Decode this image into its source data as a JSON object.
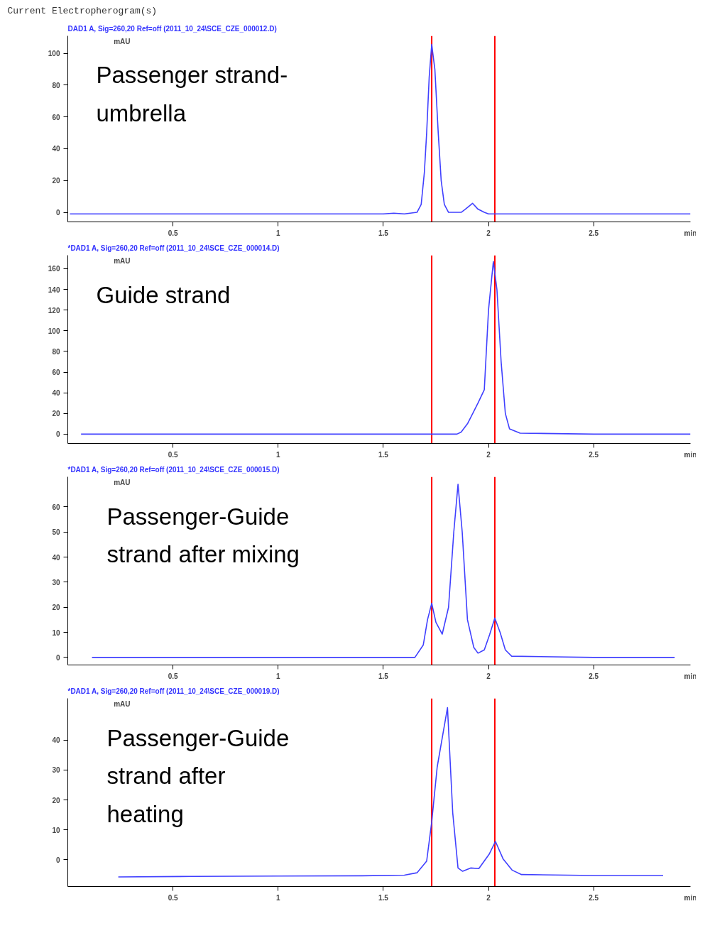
{
  "chart_data": [
    {
      "type": "line",
      "title": "Current Electropherogram(s)",
      "subtitle": "DAD1 A, Sig=260,20 Ref=off (2011_10_24\\SCE_CZE_000012.D)",
      "ylabel": "mAU",
      "xlabel": "min",
      "annotations": [
        "Passenger strand-\numbrella"
      ],
      "grid": false,
      "xlim": [
        0,
        2.96
      ],
      "xticks": [
        0.5,
        1,
        1.5,
        2,
        2.5
      ],
      "ylim": [
        -6,
        111
      ],
      "yticks": [
        0,
        20,
        40,
        60,
        80,
        100
      ],
      "ref_lines": [
        {
          "axis": "x",
          "value": 1.73,
          "color": "#ff0000"
        },
        {
          "axis": "x",
          "value": 2.03,
          "color": "#ff0000"
        }
      ],
      "series": [
        {
          "color": "#4040ff",
          "x": [
            0.01,
            0.3,
            0.6,
            0.9,
            1.2,
            1.5,
            1.55,
            1.6,
            1.66,
            1.68,
            1.695,
            1.706,
            1.718,
            1.73,
            1.745,
            1.761,
            1.775,
            1.79,
            1.81,
            1.87,
            1.89,
            1.924,
            1.95,
            1.98,
            2.0,
            2.3,
            2.6,
            2.96
          ],
          "values": [
            -1,
            -1,
            -1,
            -1,
            -1,
            -1,
            -0.5,
            -1,
            0,
            5,
            25,
            50,
            85,
            105.6,
            90,
            50,
            20,
            5,
            0,
            0,
            2,
            5.7,
            2,
            0,
            -1,
            -1,
            -1,
            -1
          ]
        }
      ]
    },
    {
      "type": "line",
      "subtitle": "*DAD1 A, Sig=260,20 Ref=off (2011_10_24\\SCE_CZE_000014.D)",
      "ylabel": "mAU",
      "xlabel": "min",
      "annotations": [
        "Guide strand"
      ],
      "grid": false,
      "xlim": [
        0,
        2.96
      ],
      "xticks": [
        0.5,
        1,
        1.5,
        2,
        2.5
      ],
      "ylim": [
        -9,
        173
      ],
      "yticks": [
        0,
        20,
        40,
        60,
        80,
        100,
        120,
        140,
        160
      ],
      "ref_lines": [
        {
          "axis": "x",
          "value": 1.73,
          "color": "#ff0000"
        },
        {
          "axis": "x",
          "value": 2.03,
          "color": "#ff0000"
        }
      ],
      "series": [
        {
          "color": "#4040ff",
          "x": [
            0.063,
            0.4,
            0.8,
            1.2,
            1.6,
            1.85,
            1.87,
            1.9,
            1.93,
            1.95,
            1.98,
            2.0,
            2.023,
            2.04,
            2.06,
            2.08,
            2.1,
            2.15,
            2.5,
            2.96
          ],
          "values": [
            0,
            0,
            0,
            0,
            0,
            0,
            2,
            10,
            22,
            30,
            43,
            120,
            167,
            140,
            70,
            20,
            5,
            1,
            0,
            0
          ]
        }
      ]
    },
    {
      "type": "line",
      "subtitle": "*DAD1 A, Sig=260,20 Ref=off (2011_10_24\\SCE_CZE_000015.D)",
      "ylabel": "mAU",
      "xlabel": "min",
      "annotations": [
        "Passenger-Guide\nstrand after mixing"
      ],
      "grid": false,
      "xlim": [
        0,
        2.96
      ],
      "xticks": [
        0.5,
        1,
        1.5,
        2,
        2.5
      ],
      "ylim": [
        -3,
        72
      ],
      "yticks": [
        0,
        10,
        20,
        30,
        40,
        50,
        60
      ],
      "ref_lines": [
        {
          "axis": "x",
          "value": 1.73,
          "color": "#ff0000"
        },
        {
          "axis": "x",
          "value": 2.03,
          "color": "#ff0000"
        }
      ],
      "series": [
        {
          "color": "#4040ff",
          "x": [
            0.115,
            0.5,
            1.0,
            1.5,
            1.65,
            1.69,
            1.71,
            1.73,
            1.75,
            1.78,
            1.81,
            1.835,
            1.855,
            1.875,
            1.9,
            1.93,
            1.95,
            1.98,
            2.005,
            2.03,
            2.055,
            2.08,
            2.11,
            2.5,
            2.885
          ],
          "values": [
            0,
            0,
            0,
            0,
            0,
            5,
            15,
            21.6,
            14,
            9.3,
            20,
            50,
            69,
            50,
            15,
            4,
            1.7,
            3,
            9,
            15.7,
            10,
            3,
            0.5,
            0,
            0
          ]
        }
      ]
    },
    {
      "type": "line",
      "subtitle": "*DAD1 A, Sig=260,20 Ref=off (2011_10_24\\SCE_CZE_000019.D)",
      "ylabel": "mAU",
      "xlabel": "min",
      "annotations": [
        "Passenger-Guide\nstrand after\nheating"
      ],
      "grid": false,
      "xlim": [
        0,
        2.96
      ],
      "xticks": [
        0.5,
        1,
        1.5,
        2,
        2.5
      ],
      "ylim": [
        -9,
        54
      ],
      "yticks": [
        0,
        10,
        20,
        30,
        40
      ],
      "ref_lines": [
        {
          "axis": "x",
          "value": 1.73,
          "color": "#ff0000"
        },
        {
          "axis": "x",
          "value": 2.03,
          "color": "#ff0000"
        }
      ],
      "series": [
        {
          "color": "#4040ff",
          "x": [
            0.24,
            0.6,
            1.0,
            1.4,
            1.6,
            1.66,
            1.706,
            1.73,
            1.756,
            1.805,
            1.83,
            1.855,
            1.877,
            1.915,
            1.954,
            2.003,
            2.033,
            2.069,
            2.112,
            2.157,
            2.5,
            2.83
          ],
          "values": [
            -5.8,
            -5.6,
            -5.5,
            -5.4,
            -5.2,
            -4.4,
            -0.5,
            12.6,
            31,
            50.9,
            15.6,
            -2.8,
            -3.9,
            -2.8,
            -3,
            1.8,
            6.1,
            0.3,
            -3.5,
            -5,
            -5.3,
            -5.3
          ]
        }
      ]
    }
  ]
}
